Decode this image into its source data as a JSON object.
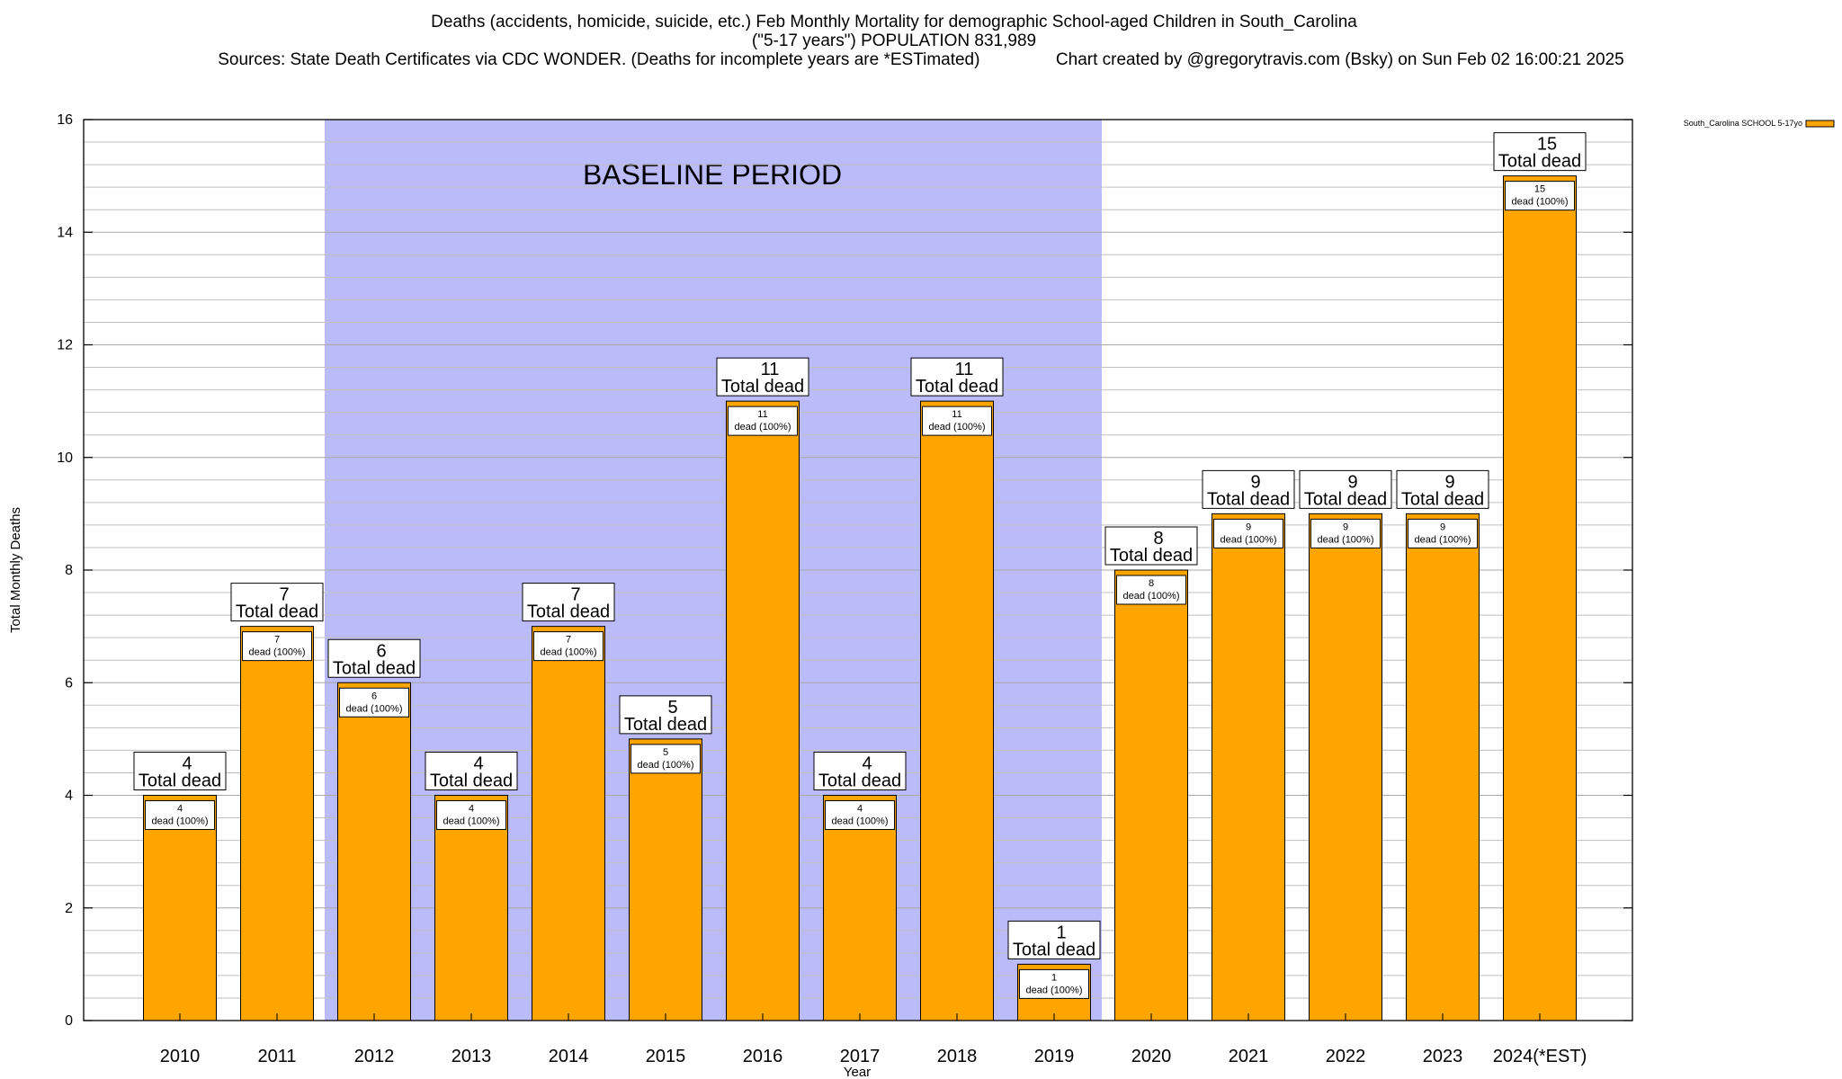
{
  "titles": {
    "line1": "Deaths (accidents, homicide, suicide, etc.) Feb Monthly Mortality for demographic School-aged Children in South_Carolina",
    "line2": "(\"5-17 years\") POPULATION 831,989",
    "line3": "Sources: State Death Certificates via CDC WONDER. (Deaths for incomplete years are *ESTimated)                Chart created by @gregorytravis.com (Bsky) on Sun Feb 02 16:00:21 2025"
  },
  "chart_data": {
    "type": "bar",
    "xlabel": "Year",
    "ylabel": "Total Monthly Deaths",
    "ylim": [
      0,
      16
    ],
    "y_ticks": [
      0,
      2,
      4,
      6,
      8,
      10,
      12,
      14,
      16
    ],
    "grid": true,
    "legend_position": "top-right",
    "categories": [
      "2010",
      "2011",
      "2012",
      "2013",
      "2014",
      "2015",
      "2016",
      "2017",
      "2018",
      "2019",
      "2020",
      "2021",
      "2022",
      "2023",
      "2024(*EST)"
    ],
    "series": [
      {
        "name": "South_Carolina SCHOOL 5-17yo",
        "values": [
          4,
          7,
          6,
          4,
          7,
          5,
          11,
          4,
          11,
          1,
          8,
          9,
          9,
          9,
          15
        ]
      }
    ],
    "total_label": "Total dead",
    "inner_label_suffix": "dead (100%)",
    "baseline_band": {
      "label": "BASELINE PERIOD",
      "from_category": "2012",
      "to_category": "2019"
    },
    "colors": {
      "bar": "#FFA500",
      "band": "#BBBBFA",
      "axis": "#000000",
      "grid": "#C0C0C0"
    }
  }
}
